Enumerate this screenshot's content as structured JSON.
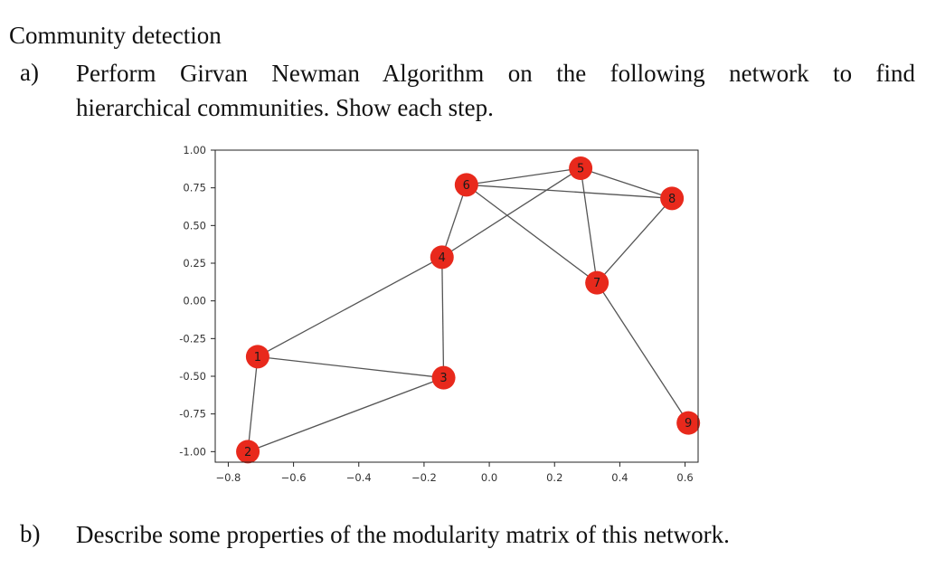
{
  "heading": "Community detection",
  "question_a": {
    "label": "a)",
    "text_words": [
      "Perform",
      "Girvan",
      "Newman",
      "Algorithm",
      "on",
      "the",
      "following",
      "network",
      "to",
      "find"
    ],
    "text_line2": "hierarchical communities. Show each step."
  },
  "question_b": {
    "label": "b)",
    "text": "Describe some properties of the modularity matrix of this network."
  },
  "chart_data": {
    "type": "scatter",
    "title": "",
    "xlabel": "",
    "ylabel": "",
    "xlim": [
      -0.84,
      0.64
    ],
    "ylim": [
      -1.07,
      1.0
    ],
    "x_ticks": [
      -0.8,
      -0.6,
      -0.4,
      -0.2,
      0.0,
      0.2,
      0.4,
      0.6
    ],
    "x_tick_labels": [
      "−0.8",
      "−0.6",
      "−0.4",
      "−0.2",
      "0.0",
      "0.2",
      "0.4",
      "0.6"
    ],
    "y_ticks": [
      1.0,
      0.75,
      0.5,
      0.25,
      0.0,
      -0.25,
      -0.5,
      -0.75,
      -1.0
    ],
    "y_tick_labels": [
      "1.00",
      "0.75",
      "0.50",
      "0.25",
      "0.00",
      "-0.25",
      "-0.50",
      "-0.75",
      "-1.00"
    ],
    "grid": false,
    "node_color": "#e8291c",
    "edge_color": "#555555",
    "nodes": [
      {
        "id": "1",
        "x": -0.71,
        "y": -0.37
      },
      {
        "id": "2",
        "x": -0.74,
        "y": -1.0
      },
      {
        "id": "3",
        "x": -0.14,
        "y": -0.51
      },
      {
        "id": "4",
        "x": -0.145,
        "y": 0.29
      },
      {
        "id": "5",
        "x": 0.28,
        "y": 0.88
      },
      {
        "id": "6",
        "x": -0.07,
        "y": 0.77
      },
      {
        "id": "7",
        "x": 0.33,
        "y": 0.12
      },
      {
        "id": "8",
        "x": 0.56,
        "y": 0.68
      },
      {
        "id": "9",
        "x": 0.61,
        "y": -0.81
      }
    ],
    "edges": [
      [
        "1",
        "2"
      ],
      [
        "1",
        "3"
      ],
      [
        "1",
        "4"
      ],
      [
        "2",
        "3"
      ],
      [
        "3",
        "4"
      ],
      [
        "4",
        "6"
      ],
      [
        "4",
        "5"
      ],
      [
        "5",
        "6"
      ],
      [
        "5",
        "8"
      ],
      [
        "5",
        "7"
      ],
      [
        "6",
        "8"
      ],
      [
        "6",
        "7"
      ],
      [
        "7",
        "8"
      ],
      [
        "7",
        "9"
      ]
    ]
  }
}
